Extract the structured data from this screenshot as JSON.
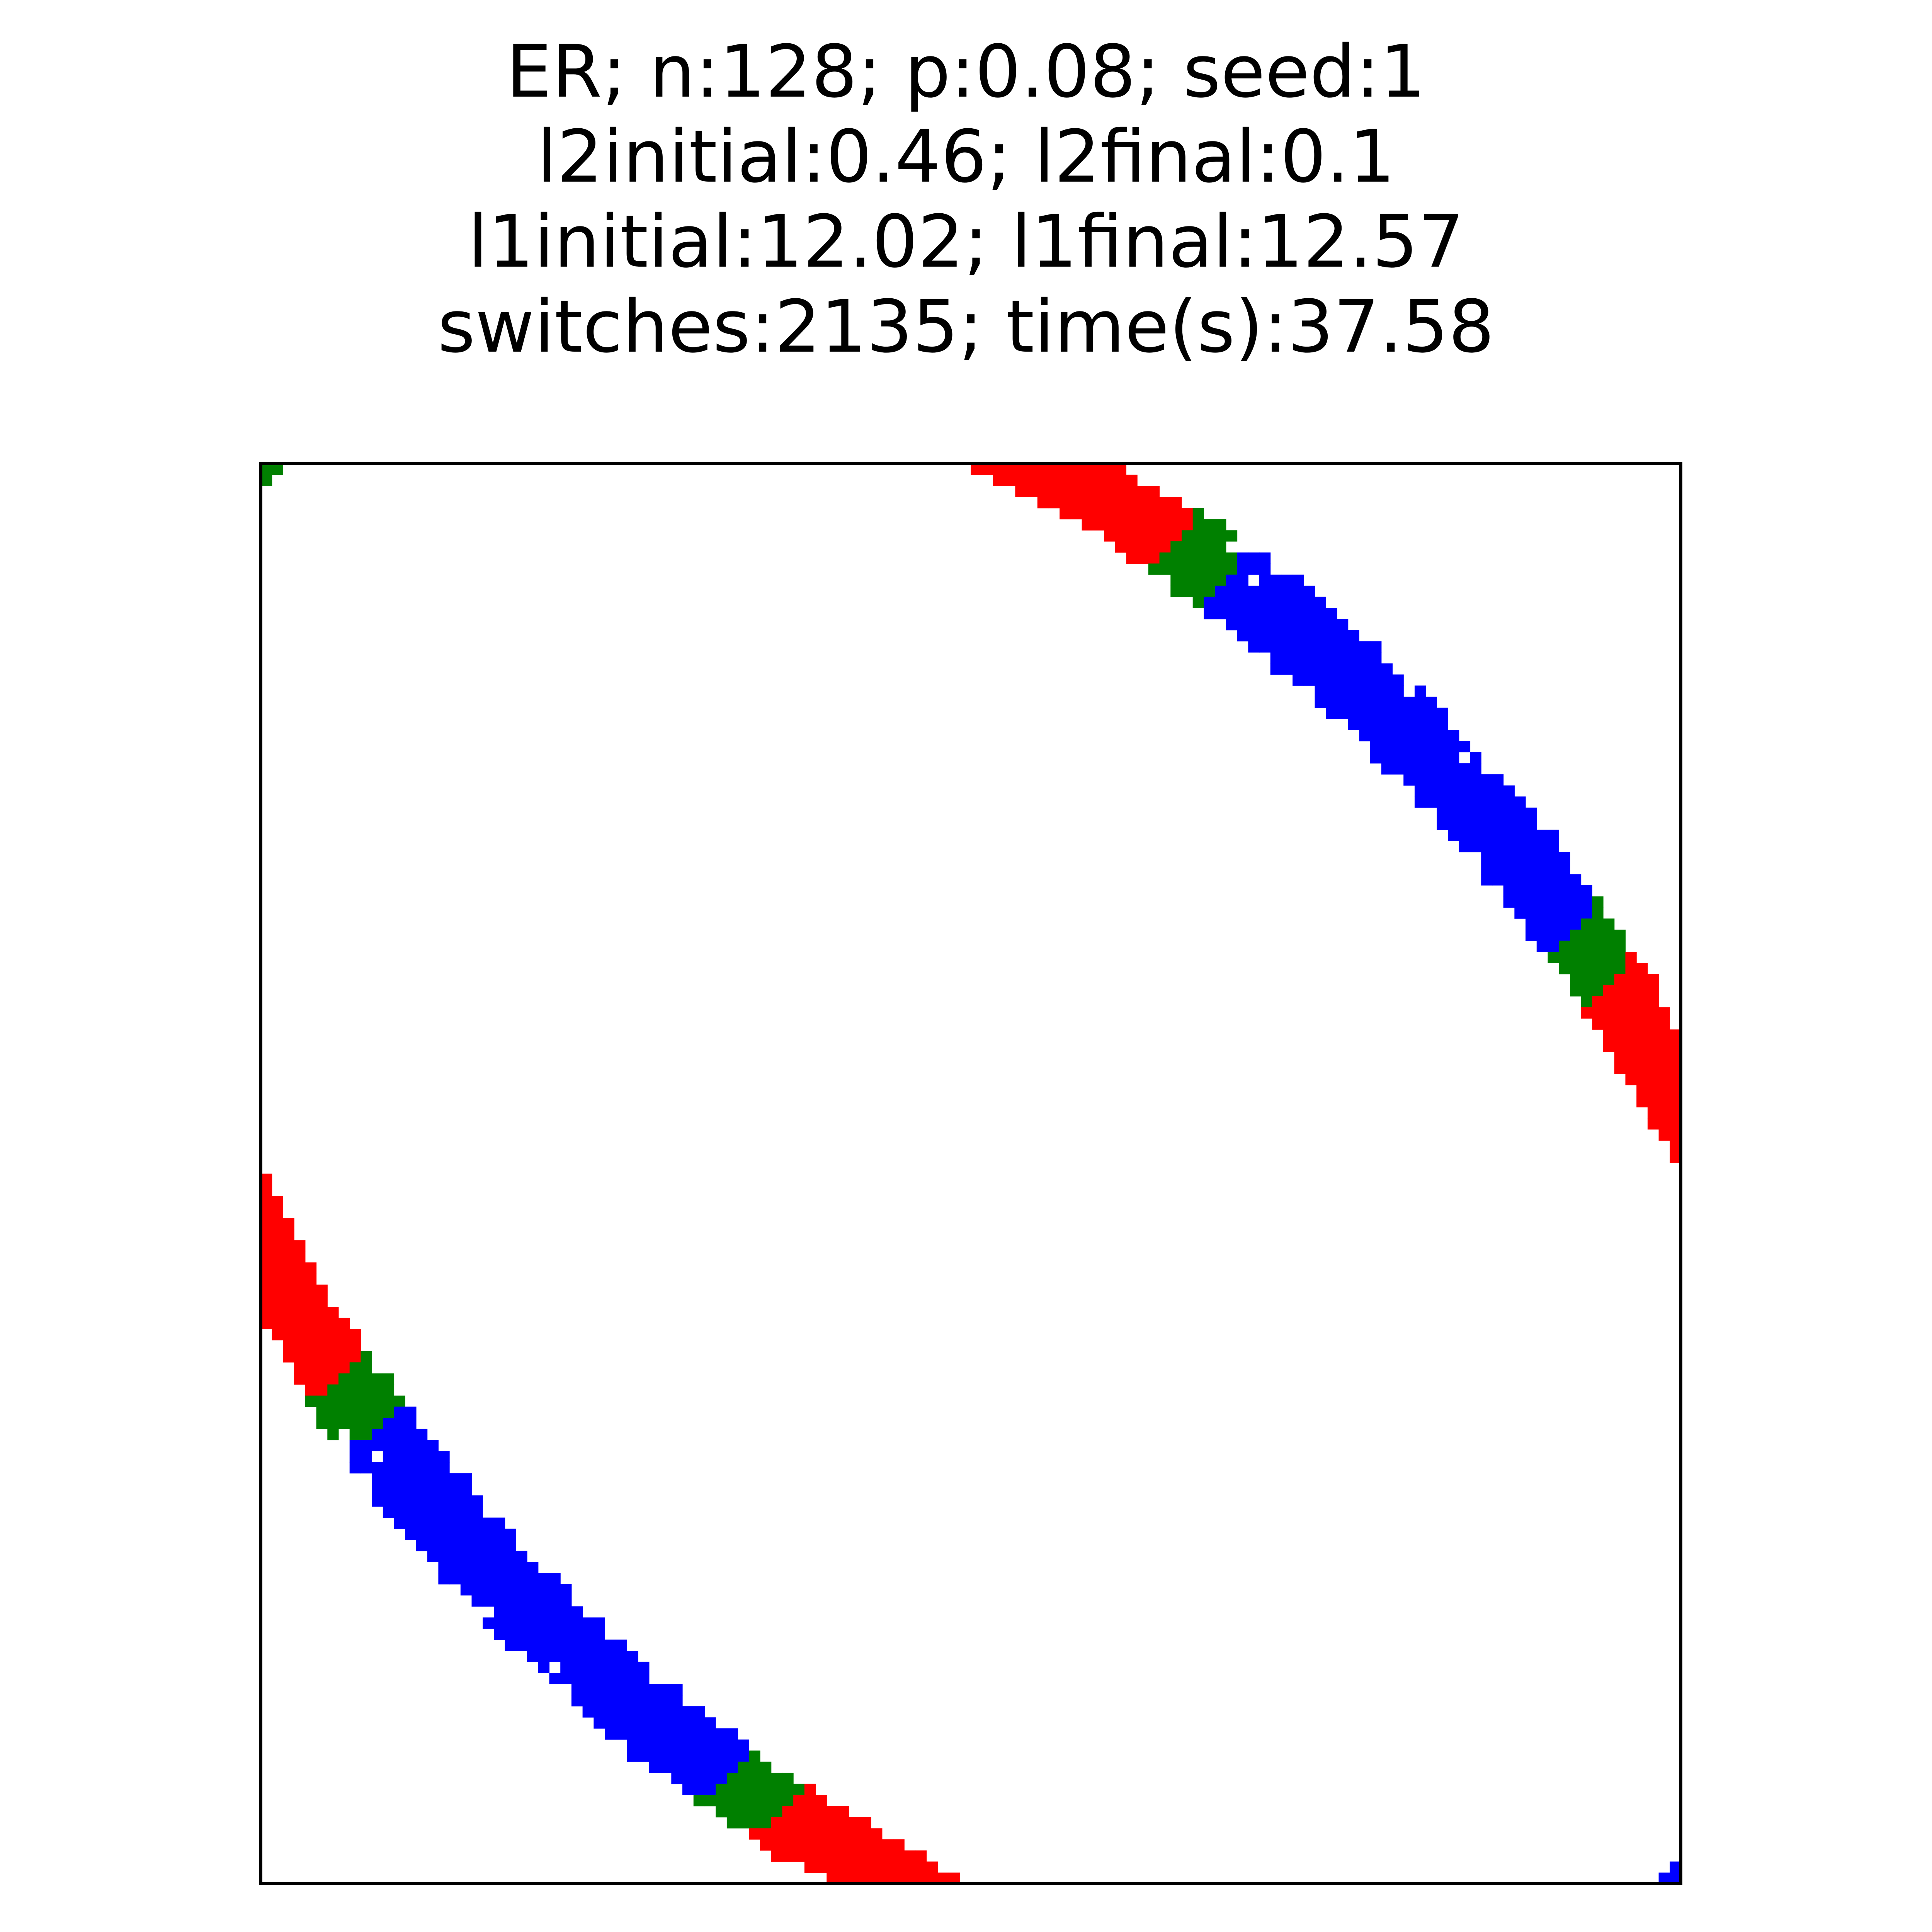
{
  "chart_data": {
    "type": "heatmap",
    "title": [
      "ER; n:128; p:0.08; seed:1",
      "l2initial:0.46; l2final:0.1",
      "l1initial:12.02; l1final:12.57",
      "switches:2135; time(s):37.58"
    ],
    "matrix_size": 128,
    "axes_visible": false,
    "grid": false,
    "legend": "none",
    "colors": {
      "red": "#ff0000",
      "green": "#008000",
      "blue": "#0000ff",
      "background": "#ffffff",
      "frame": "#000000"
    },
    "structure": "symmetric banded adjacency matrix; nonzero entries lie along two elliptical arcs through the diagonal corners (0,0) and (127,127); entries coloured in alternating red / green / blue segments",
    "band_segments": [
      {
        "color": "green",
        "t_start": 0.0,
        "t_end": 0.03
      },
      {
        "color": "red",
        "t_start": 0.03,
        "t_end": 0.085
      },
      {
        "color": "green",
        "t_start": 0.085,
        "t_end": 0.11
      },
      {
        "color": "blue",
        "t_start": 0.11,
        "t_end": 0.225
      },
      {
        "color": "green",
        "t_start": 0.225,
        "t_end": 0.25
      },
      {
        "color": "red",
        "t_start": 0.25,
        "t_end": 0.4
      },
      {
        "color": "green",
        "t_start": 0.4,
        "t_end": 0.42
      },
      {
        "color": "blue",
        "t_start": 0.42,
        "t_end": 0.58
      },
      {
        "color": "green",
        "t_start": 0.58,
        "t_end": 0.6
      },
      {
        "color": "red",
        "t_start": 0.6,
        "t_end": 0.75
      },
      {
        "color": "green",
        "t_start": 0.75,
        "t_end": 0.77
      },
      {
        "color": "blue",
        "t_start": 0.77,
        "t_end": 0.9
      },
      {
        "color": "green",
        "t_start": 0.9,
        "t_end": 0.915
      },
      {
        "color": "red",
        "t_start": 0.915,
        "t_end": 0.955
      },
      {
        "color": "green",
        "t_start": 0.955,
        "t_end": 0.97
      },
      {
        "color": "blue",
        "t_start": 0.97,
        "t_end": 1.0
      }
    ]
  }
}
